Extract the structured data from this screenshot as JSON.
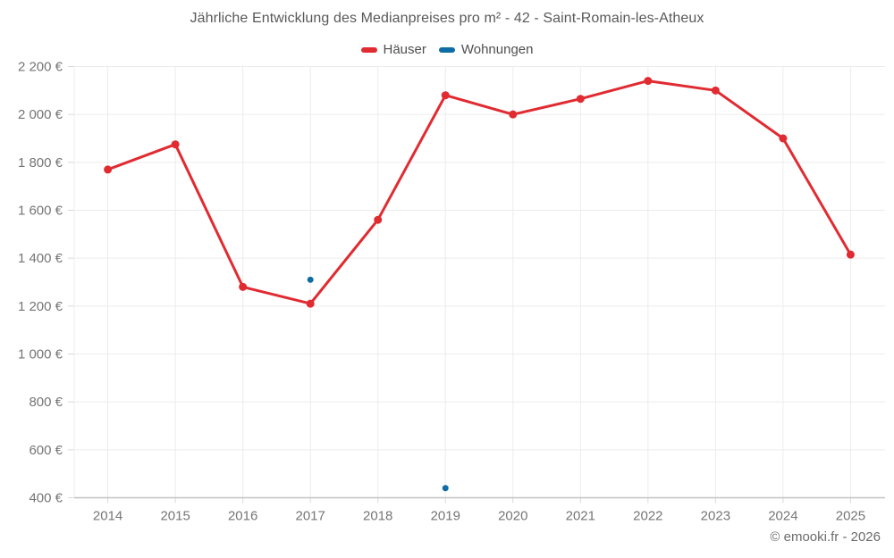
{
  "footer": {
    "text": "© emooki.fr - 2026"
  },
  "chart_data": {
    "type": "line",
    "title": "Jährliche Entwicklung des Medianpreises pro m² - 42 - Saint-Romain-les-Atheux",
    "x_labels": [
      "2014",
      "2015",
      "2016",
      "2017",
      "2018",
      "2019",
      "2020",
      "2021",
      "2022",
      "2023",
      "2024",
      "2025"
    ],
    "y_ticks": [
      {
        "value": 2200,
        "label": "2 200 €"
      },
      {
        "value": 2000,
        "label": "2 000 €"
      },
      {
        "value": 1800,
        "label": "1 800 €"
      },
      {
        "value": 1600,
        "label": "1 600 €"
      },
      {
        "value": 1400,
        "label": "1 400 €"
      },
      {
        "value": 1200,
        "label": "1 200 €"
      },
      {
        "value": 1000,
        "label": "1 000 €"
      },
      {
        "value": 800,
        "label": "800 €"
      },
      {
        "value": 600,
        "label": "600 €"
      },
      {
        "value": 400,
        "label": "400 €"
      }
    ],
    "ylim": [
      400,
      2200
    ],
    "grid": true,
    "legend_position": "top",
    "unit": "€/m²",
    "series": [
      {
        "name": "Häuser",
        "slug": "hauser",
        "color": "#e02b31",
        "line_width": 3,
        "point_radius": 4.5,
        "values": [
          1770,
          1875,
          1280,
          1210,
          1560,
          2080,
          2000,
          2065,
          2140,
          2100,
          1900,
          1415
        ]
      },
      {
        "name": "Wohnungen",
        "slug": "wohnungen",
        "color": "#0f6ca5",
        "line_width": 3,
        "point_radius": 3.5,
        "values": [
          null,
          null,
          null,
          1310,
          null,
          440,
          null,
          null,
          null,
          null,
          null,
          null
        ]
      }
    ]
  }
}
